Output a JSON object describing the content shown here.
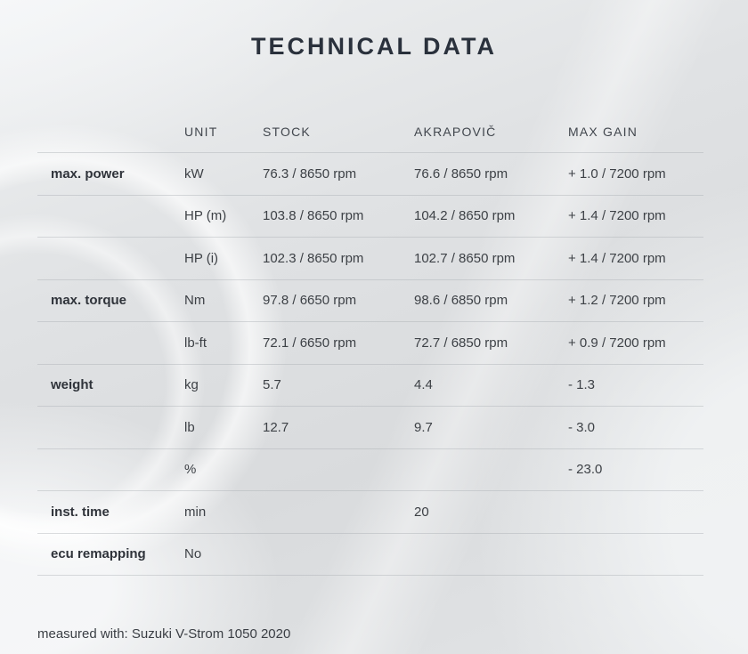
{
  "page": {
    "title": "TECHNICAL DATA",
    "footer": "measured with: Suzuki V-Strom 1050 2020"
  },
  "table": {
    "headers": [
      "",
      "UNIT",
      "STOCK",
      "AKRAPOVIČ",
      "MAX GAIN"
    ],
    "rows": [
      {
        "label": "max. power",
        "unit": "kW",
        "stock": "76.3 / 8650 rpm",
        "akrapovic": "76.6 / 8650 rpm",
        "max_gain": "+ 1.0 / 7200 rpm"
      },
      {
        "label": "",
        "unit": "HP (m)",
        "stock": "103.8 / 8650 rpm",
        "akrapovic": "104.2 / 8650 rpm",
        "max_gain": "+ 1.4 / 7200 rpm"
      },
      {
        "label": "",
        "unit": "HP (i)",
        "stock": "102.3 / 8650 rpm",
        "akrapovic": "102.7 / 8650 rpm",
        "max_gain": "+ 1.4 / 7200 rpm"
      },
      {
        "label": "max. torque",
        "unit": "Nm",
        "stock": "97.8 / 6650 rpm",
        "akrapovic": "98.6 / 6850 rpm",
        "max_gain": "+ 1.2 / 7200 rpm"
      },
      {
        "label": "",
        "unit": "lb-ft",
        "stock": "72.1 / 6650 rpm",
        "akrapovic": "72.7 / 6850 rpm",
        "max_gain": "+ 0.9 / 7200 rpm"
      },
      {
        "label": "weight",
        "unit": "kg",
        "stock": "5.7",
        "akrapovic": "4.4",
        "max_gain": "- 1.3"
      },
      {
        "label": "",
        "unit": "lb",
        "stock": "12.7",
        "akrapovic": "9.7",
        "max_gain": "- 3.0"
      },
      {
        "label": "",
        "unit": "%",
        "stock": "",
        "akrapovic": "",
        "max_gain": "- 23.0"
      },
      {
        "label": "inst. time",
        "unit": "min",
        "stock": "",
        "akrapovic": "20",
        "max_gain": ""
      },
      {
        "label": "ecu remapping",
        "unit": "No",
        "stock": "",
        "akrapovic": "",
        "max_gain": ""
      }
    ]
  },
  "colors": {
    "background_base": "#dfe1e3",
    "title_text": "#2a313c",
    "header_text": "#41464d",
    "label_text": "#2f333a",
    "cell_text": "#3d4146",
    "separator": "#a5aaaf"
  }
}
